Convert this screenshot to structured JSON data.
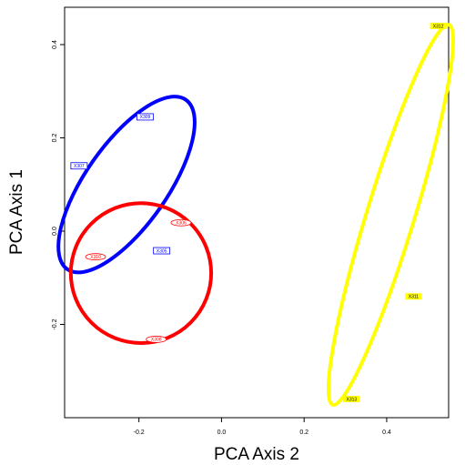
{
  "chart_data": {
    "type": "scatter",
    "title": "",
    "xlabel": "PCA Axis 2",
    "ylabel": "PCA Axis 1",
    "xlim": [
      -0.38,
      0.55
    ],
    "ylim": [
      -0.4,
      0.48
    ],
    "x_ticks": [
      {
        "value": -0.2,
        "label": "-0.2"
      },
      {
        "value": 0.0,
        "label": "0.0"
      },
      {
        "value": 0.2,
        "label": "0.2"
      },
      {
        "value": 0.4,
        "label": "0.4"
      }
    ],
    "y_ticks": [
      {
        "value": -0.2,
        "label": "-0.2"
      },
      {
        "value": 0.0,
        "label": "0.0"
      },
      {
        "value": 0.2,
        "label": "0.2"
      },
      {
        "value": 0.4,
        "label": "0.4"
      }
    ],
    "grid": false,
    "legend": "none",
    "groups": [
      {
        "color": "#0000ff",
        "label_style": "box",
        "ellipse": {
          "cx": -0.23,
          "cy": 0.1,
          "rx": 0.23,
          "ry": 0.095,
          "angle_deg": -55
        },
        "points": [
          {
            "label": "X309",
            "x": -0.185,
            "y": 0.245
          },
          {
            "label": "X307",
            "x": -0.345,
            "y": 0.14
          },
          {
            "label": "X305",
            "x": -0.145,
            "y": -0.042
          }
        ]
      },
      {
        "color": "#ff0000",
        "label_style": "oval",
        "ellipse": {
          "cx": -0.195,
          "cy": -0.09,
          "rx": 0.17,
          "ry": 0.15,
          "angle_deg": 0
        },
        "points": [
          {
            "label": "X306",
            "x": -0.098,
            "y": 0.018
          },
          {
            "label": "X310",
            "x": -0.305,
            "y": -0.055
          },
          {
            "label": "X308",
            "x": -0.158,
            "y": -0.232
          }
        ]
      },
      {
        "color": "#ffff00",
        "label_style": "fill",
        "ellipse": {
          "cx": 0.41,
          "cy": 0.035,
          "rx": 0.43,
          "ry": 0.057,
          "angle_deg": -73
        },
        "points": [
          {
            "label": "X312",
            "x": 0.525,
            "y": 0.44
          },
          {
            "label": "X311",
            "x": 0.465,
            "y": -0.14
          },
          {
            "label": "X313",
            "x": 0.315,
            "y": -0.36
          }
        ]
      }
    ]
  }
}
